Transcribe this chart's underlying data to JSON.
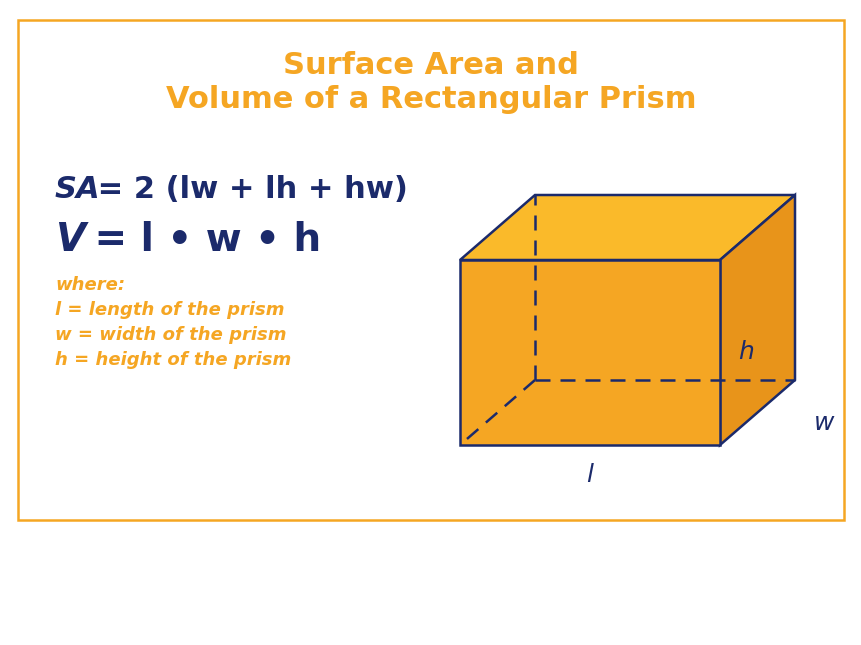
{
  "title_line1": "Surface Area and",
  "title_line2": "Volume of a Rectangular Prism",
  "title_color": "#F5A623",
  "title_fontsize": 22,
  "border_color": "#F5A623",
  "background_color": "#FFFFFF",
  "formula_color": "#1B2A6B",
  "formula_sa": "SA",
  "formula_sa_rest": " = 2 (lw + lh + hw)",
  "formula_v": "V",
  "formula_v_rest": " = l • w • h",
  "formula_fontsize_sa": 22,
  "formula_fontsize_v": 28,
  "where_color": "#F5A623",
  "where_text": "where:",
  "def_l": "l = length of the prism",
  "def_w": "w = width of the prism",
  "def_h": "h = height of the prism",
  "def_fontsize": 13,
  "prism_fill": "#F5A623",
  "prism_fill_right": "#E8941A",
  "prism_fill_top": "#FABA2A",
  "prism_edge": "#1B2A6B",
  "prism_edge_width": 1.8,
  "label_fontsize": 18
}
